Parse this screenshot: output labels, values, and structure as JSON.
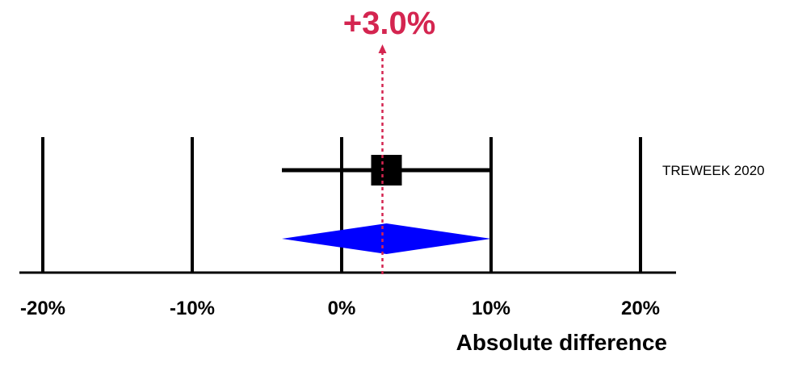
{
  "chart_data": {
    "type": "forest",
    "xlabel": "Absolute difference",
    "xlim": [
      -20,
      20
    ],
    "x_ticks": [
      -20,
      -10,
      0,
      10,
      20
    ],
    "x_tick_labels": [
      "-20%",
      "-10%",
      "0%",
      "10%",
      "20%"
    ],
    "studies": [
      {
        "label": "TREWEEK 2020",
        "estimate": 3.0,
        "ci_low": -4.0,
        "ci_high": 10.0
      }
    ],
    "pooled": {
      "estimate": 3.0,
      "ci_low": -4.0,
      "ci_high": 10.0
    },
    "pooled_label": "+3.0%",
    "colors": {
      "pooled": "#0000ff",
      "effect_line": "#d42550",
      "marker": "#000000"
    }
  }
}
